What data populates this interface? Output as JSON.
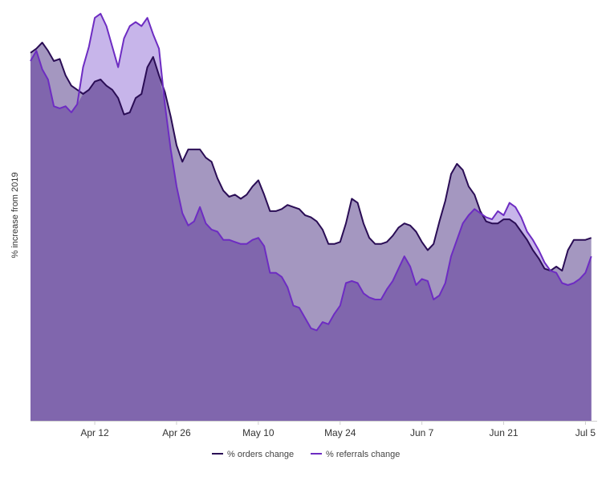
{
  "chart_data": {
    "type": "area",
    "title": "",
    "xlabel": "",
    "ylabel": "% increase from 2019",
    "x_ticks": [
      "Apr 12",
      "Apr 26",
      "May 10",
      "May 24",
      "Jun 7",
      "Jun 21",
      "Jul 5"
    ],
    "x_tick_days": [
      11,
      25,
      39,
      53,
      67,
      81,
      95
    ],
    "x_range": [
      0,
      97
    ],
    "ylim": [
      0,
      100
    ],
    "grid": false,
    "legend": "bottom-center",
    "series": [
      {
        "name": "% orders change",
        "color": "#2a0d55",
        "fill": "#a497c0",
        "points": [
          [
            0,
            89.5
          ],
          [
            1,
            90.5
          ],
          [
            2,
            92
          ],
          [
            3,
            90
          ],
          [
            4,
            87.5
          ],
          [
            5,
            88
          ],
          [
            6,
            84
          ],
          [
            7,
            81.5
          ],
          [
            8,
            80.5
          ],
          [
            9,
            79.5
          ],
          [
            10,
            80.5
          ],
          [
            11,
            82.5
          ],
          [
            12,
            83
          ],
          [
            13,
            81.5
          ],
          [
            14,
            80.5
          ],
          [
            15,
            78.5
          ],
          [
            16,
            74.5
          ],
          [
            17,
            75
          ],
          [
            18,
            78.5
          ],
          [
            19,
            79.5
          ],
          [
            20,
            86
          ],
          [
            21,
            88.5
          ],
          [
            22,
            84
          ],
          [
            23,
            80
          ],
          [
            24,
            74
          ],
          [
            25,
            67
          ],
          [
            26,
            63
          ],
          [
            27,
            66
          ],
          [
            28,
            66
          ],
          [
            29,
            66
          ],
          [
            30,
            64
          ],
          [
            31,
            63
          ],
          [
            32,
            59
          ],
          [
            33,
            56
          ],
          [
            34,
            54.5
          ],
          [
            35,
            55
          ],
          [
            36,
            54
          ],
          [
            37,
            55
          ],
          [
            38,
            57
          ],
          [
            39,
            58.5
          ],
          [
            40,
            55
          ],
          [
            41,
            51
          ],
          [
            42,
            51
          ],
          [
            43,
            51.5
          ],
          [
            44,
            52.5
          ],
          [
            45,
            52
          ],
          [
            46,
            51.5
          ],
          [
            47,
            50
          ],
          [
            48,
            49.5
          ],
          [
            49,
            48.5
          ],
          [
            50,
            46.5
          ],
          [
            51,
            43
          ],
          [
            52,
            43
          ],
          [
            53,
            43.5
          ],
          [
            54,
            48
          ],
          [
            55,
            54
          ],
          [
            56,
            53
          ],
          [
            57,
            48
          ],
          [
            58,
            44.5
          ],
          [
            59,
            43
          ],
          [
            60,
            43
          ],
          [
            61,
            43.5
          ],
          [
            62,
            45
          ],
          [
            63,
            47
          ],
          [
            64,
            48
          ],
          [
            65,
            47.5
          ],
          [
            66,
            46
          ],
          [
            67,
            43.5
          ],
          [
            68,
            41.5
          ],
          [
            69,
            43
          ],
          [
            70,
            48.5
          ],
          [
            71,
            53.5
          ],
          [
            72,
            60
          ],
          [
            73,
            62.5
          ],
          [
            74,
            61
          ],
          [
            75,
            57
          ],
          [
            76,
            55
          ],
          [
            77,
            51
          ],
          [
            78,
            48.5
          ],
          [
            79,
            48
          ],
          [
            80,
            48
          ],
          [
            81,
            49
          ],
          [
            82,
            49
          ],
          [
            83,
            48
          ],
          [
            84,
            46
          ],
          [
            85,
            44
          ],
          [
            86,
            41.5
          ],
          [
            87,
            39.5
          ],
          [
            88,
            37
          ],
          [
            89,
            36.5
          ],
          [
            90,
            37.5
          ],
          [
            91,
            36.5
          ],
          [
            92,
            41.5
          ],
          [
            93,
            44
          ],
          [
            94,
            44
          ],
          [
            95,
            44
          ],
          [
            96,
            44.5
          ]
        ]
      },
      {
        "name": "% referrals change",
        "color": "#6d2cc2",
        "fill": "#c7b5ea",
        "points": [
          [
            0,
            87.5
          ],
          [
            1,
            90
          ],
          [
            2,
            85.5
          ],
          [
            3,
            83
          ],
          [
            4,
            76.5
          ],
          [
            5,
            76
          ],
          [
            6,
            76.5
          ],
          [
            7,
            75
          ],
          [
            8,
            77
          ],
          [
            9,
            86
          ],
          [
            10,
            91
          ],
          [
            11,
            98
          ],
          [
            12,
            99
          ],
          [
            13,
            96
          ],
          [
            14,
            91
          ],
          [
            15,
            86
          ],
          [
            16,
            93
          ],
          [
            17,
            96
          ],
          [
            18,
            97
          ],
          [
            19,
            96
          ],
          [
            20,
            98
          ],
          [
            21,
            94
          ],
          [
            22,
            90.5
          ],
          [
            23,
            77
          ],
          [
            24,
            66
          ],
          [
            25,
            57
          ],
          [
            26,
            50.5
          ],
          [
            27,
            47.5
          ],
          [
            28,
            48.5
          ],
          [
            29,
            52
          ],
          [
            30,
            48
          ],
          [
            31,
            46.5
          ],
          [
            32,
            46
          ],
          [
            33,
            44
          ],
          [
            34,
            44
          ],
          [
            35,
            43.5
          ],
          [
            36,
            43
          ],
          [
            37,
            43
          ],
          [
            38,
            44
          ],
          [
            39,
            44.5
          ],
          [
            40,
            42.5
          ],
          [
            41,
            36
          ],
          [
            42,
            36
          ],
          [
            43,
            35
          ],
          [
            44,
            32.5
          ],
          [
            45,
            28
          ],
          [
            46,
            27.5
          ],
          [
            47,
            25
          ],
          [
            48,
            22.5
          ],
          [
            49,
            22
          ],
          [
            50,
            24
          ],
          [
            51,
            23.5
          ],
          [
            52,
            26
          ],
          [
            53,
            28
          ],
          [
            54,
            33.5
          ],
          [
            55,
            34
          ],
          [
            56,
            33.5
          ],
          [
            57,
            31
          ],
          [
            58,
            30
          ],
          [
            59,
            29.5
          ],
          [
            60,
            29.5
          ],
          [
            61,
            32
          ],
          [
            62,
            34
          ],
          [
            63,
            37
          ],
          [
            64,
            40
          ],
          [
            65,
            37.5
          ],
          [
            66,
            33
          ],
          [
            67,
            34.5
          ],
          [
            68,
            34
          ],
          [
            69,
            29.5
          ],
          [
            70,
            30.5
          ],
          [
            71,
            33.5
          ],
          [
            72,
            40
          ],
          [
            73,
            44
          ],
          [
            74,
            48
          ],
          [
            75,
            50
          ],
          [
            76,
            51.5
          ],
          [
            77,
            50.5
          ],
          [
            78,
            49.5
          ],
          [
            79,
            49
          ],
          [
            80,
            51
          ],
          [
            81,
            50
          ],
          [
            82,
            53
          ],
          [
            83,
            52
          ],
          [
            84,
            49.5
          ],
          [
            85,
            46
          ],
          [
            86,
            44
          ],
          [
            87,
            41.5
          ],
          [
            88,
            38.5
          ],
          [
            89,
            36.5
          ],
          [
            90,
            36
          ],
          [
            91,
            33.5
          ],
          [
            92,
            33
          ],
          [
            93,
            33.5
          ],
          [
            94,
            34.5
          ],
          [
            95,
            36
          ],
          [
            96,
            40
          ]
        ]
      }
    ]
  }
}
